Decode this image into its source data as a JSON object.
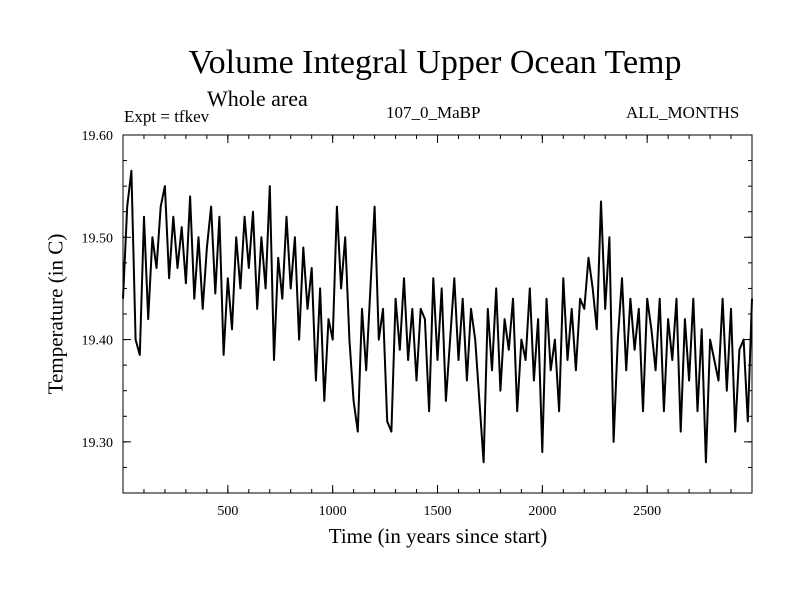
{
  "chart_data": {
    "type": "line",
    "title": "Volume Integral Upper Ocean Temp",
    "subtitle": "Whole area",
    "annotations": {
      "experiment": "Expt = tfkev",
      "run": "107_0_MaBP",
      "period": "ALL_MONTHS"
    },
    "xlabel": "Time (in years since start)",
    "ylabel": "Temperature (in C)",
    "xlim": [
      0,
      3000
    ],
    "ylim": [
      19.25,
      19.6
    ],
    "xticks": [
      500,
      1000,
      1500,
      2000,
      2500
    ],
    "yticks": [
      19.3,
      19.4,
      19.5,
      19.6
    ],
    "ytick_labels": [
      "19.30",
      "19.40",
      "19.50",
      "19.60"
    ],
    "grid": false,
    "series": [
      {
        "color": "#000000",
        "x": [
          0,
          20,
          40,
          60,
          80,
          100,
          120,
          140,
          160,
          180,
          200,
          220,
          240,
          260,
          280,
          300,
          320,
          340,
          360,
          380,
          400,
          420,
          440,
          460,
          480,
          500,
          520,
          540,
          560,
          580,
          600,
          620,
          640,
          660,
          680,
          700,
          720,
          740,
          760,
          780,
          800,
          820,
          840,
          860,
          880,
          900,
          920,
          940,
          960,
          980,
          1000,
          1020,
          1040,
          1060,
          1080,
          1100,
          1120,
          1140,
          1160,
          1180,
          1200,
          1220,
          1240,
          1260,
          1280,
          1300,
          1320,
          1340,
          1360,
          1380,
          1400,
          1420,
          1440,
          1460,
          1480,
          1500,
          1520,
          1540,
          1560,
          1580,
          1600,
          1620,
          1640,
          1660,
          1680,
          1700,
          1720,
          1740,
          1760,
          1780,
          1800,
          1820,
          1840,
          1860,
          1880,
          1900,
          1920,
          1940,
          1960,
          1980,
          2000,
          2020,
          2040,
          2060,
          2080,
          2100,
          2120,
          2140,
          2160,
          2180,
          2200,
          2220,
          2240,
          2260,
          2280,
          2300,
          2320,
          2340,
          2360,
          2380,
          2400,
          2420,
          2440,
          2460,
          2480,
          2500,
          2520,
          2540,
          2560,
          2580,
          2600,
          2620,
          2640,
          2660,
          2680,
          2700,
          2720,
          2740,
          2760,
          2780,
          2800,
          2820,
          2840,
          2860,
          2880,
          2900,
          2920,
          2940,
          2960,
          2980,
          3000
        ],
        "values": [
          19.44,
          19.53,
          19.565,
          19.4,
          19.385,
          19.52,
          19.42,
          19.5,
          19.47,
          19.53,
          19.55,
          19.46,
          19.52,
          19.47,
          19.51,
          19.455,
          19.54,
          19.44,
          19.5,
          19.43,
          19.49,
          19.53,
          19.445,
          19.52,
          19.385,
          19.46,
          19.41,
          19.5,
          19.45,
          19.52,
          19.47,
          19.525,
          19.43,
          19.5,
          19.45,
          19.55,
          19.38,
          19.48,
          19.44,
          19.52,
          19.45,
          19.5,
          19.4,
          19.49,
          19.43,
          19.47,
          19.36,
          19.45,
          19.34,
          19.42,
          19.4,
          19.53,
          19.45,
          19.5,
          19.4,
          19.34,
          19.31,
          19.43,
          19.37,
          19.45,
          19.53,
          19.4,
          19.43,
          19.32,
          19.31,
          19.44,
          19.39,
          19.46,
          19.38,
          19.43,
          19.36,
          19.43,
          19.42,
          19.33,
          19.46,
          19.38,
          19.45,
          19.34,
          19.4,
          19.46,
          19.38,
          19.44,
          19.36,
          19.43,
          19.4,
          19.34,
          19.28,
          19.43,
          19.37,
          19.45,
          19.35,
          19.42,
          19.39,
          19.44,
          19.33,
          19.4,
          19.38,
          19.45,
          19.36,
          19.42,
          19.29,
          19.44,
          19.37,
          19.4,
          19.33,
          19.46,
          19.38,
          19.43,
          19.37,
          19.44,
          19.43,
          19.48,
          19.45,
          19.41,
          19.535,
          19.43,
          19.5,
          19.3,
          19.4,
          19.46,
          19.37,
          19.44,
          19.39,
          19.43,
          19.33,
          19.44,
          19.41,
          19.37,
          19.44,
          19.33,
          19.42,
          19.38,
          19.44,
          19.31,
          19.42,
          19.36,
          19.44,
          19.33,
          19.41,
          19.28,
          19.4,
          19.38,
          19.36,
          19.44,
          19.35,
          19.43,
          19.31,
          19.39,
          19.4,
          19.32,
          19.44
        ]
      }
    ]
  }
}
